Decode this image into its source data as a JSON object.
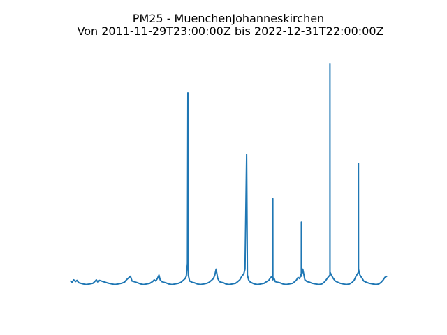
{
  "chart_data": {
    "type": "line",
    "title": "PM25 - MuenchenJohanneskirchen",
    "subtitle": "Von 2011-11-29T23:00:00Z bis 2022-12-31T22:00:00Z",
    "xlabel": "",
    "ylabel": "",
    "x_start": "2011-11-29T23:00:00Z",
    "x_end": "2022-12-31T22:00:00Z",
    "axes_visible": false,
    "grid": false,
    "line_color": "#1f77b4",
    "series": [
      {
        "x": [
          "2011-11-29",
          "2011-12-20",
          "2012-01-10",
          "2012-02-01",
          "2012-02-20",
          "2012-03-15",
          "2012-04-10",
          "2012-05-10",
          "2012-06-20",
          "2012-08-01",
          "2012-09-10",
          "2012-10-05",
          "2012-10-25",
          "2012-11-15",
          "2012-12-05",
          "2012-12-28",
          "2013-01-20",
          "2013-02-15",
          "2013-03-10",
          "2013-04-05",
          "2013-05-10",
          "2013-06-20",
          "2013-08-01",
          "2013-09-10",
          "2013-10-20",
          "2013-11-15",
          "2013-12-10",
          "2014-01-05",
          "2014-01-25",
          "2014-02-20",
          "2014-03-15",
          "2014-04-05",
          "2014-05-15",
          "2014-06-20",
          "2014-08-01",
          "2014-09-10",
          "2014-10-15",
          "2014-11-05",
          "2014-11-25",
          "2014-12-15",
          "2015-01-05",
          "2015-01-20",
          "2015-02-10",
          "2015-03-05",
          "2015-04-01",
          "2015-05-10",
          "2015-06-20",
          "2015-08-01",
          "2015-09-10",
          "2015-10-15",
          "2015-11-10",
          "2015-12-05",
          "2015-12-20",
          "2016-01-05",
          "2016-01-10",
          "2016-01-15",
          "2016-02-01",
          "2016-03-01",
          "2016-04-01",
          "2016-05-10",
          "2016-06-20",
          "2016-08-01",
          "2016-09-10",
          "2016-10-10",
          "2016-11-05",
          "2016-12-01",
          "2016-12-20",
          "2017-01-05",
          "2017-01-25",
          "2017-02-15",
          "2017-03-10",
          "2017-04-10",
          "2017-05-10",
          "2017-06-20",
          "2017-08-01",
          "2017-09-10",
          "2017-10-10",
          "2017-11-05",
          "2017-12-01",
          "2017-12-25",
          "2018-01-10",
          "2018-01-31",
          "2018-02-10",
          "2018-02-25",
          "2018-03-10",
          "2018-04-05",
          "2018-05-10",
          "2018-06-20",
          "2018-08-01",
          "2018-09-10",
          "2018-10-15",
          "2018-11-10",
          "2018-12-05",
          "2019-01-01",
          "2019-01-01T12:00:00Z",
          "2019-01-02",
          "2019-01-15",
          "2019-02-01",
          "2019-03-01",
          "2019-04-01",
          "2019-05-10",
          "2019-06-20",
          "2019-08-01",
          "2019-09-10",
          "2019-10-10",
          "2019-11-01",
          "2019-11-20",
          "2019-12-10",
          "2019-12-25",
          "2020-01-01",
          "2020-01-01T12:00:00Z",
          "2020-01-02",
          "2020-01-20",
          "2020-02-15",
          "2020-03-15",
          "2020-04-15",
          "2020-05-20",
          "2020-07-01",
          "2020-08-15",
          "2020-09-20",
          "2020-10-20",
          "2020-11-10",
          "2020-12-01",
          "2020-12-20",
          "2021-01-01",
          "2021-01-01T12:00:00Z",
          "2021-01-02",
          "2021-01-20",
          "2021-02-10",
          "2021-03-10",
          "2021-04-10",
          "2021-05-15",
          "2021-06-20",
          "2021-08-01",
          "2021-09-10",
          "2021-10-15",
          "2021-11-10",
          "2021-12-01",
          "2021-12-20",
          "2022-01-01",
          "2022-01-01T12:00:00Z",
          "2022-01-02",
          "2022-01-20",
          "2022-02-15",
          "2022-03-10",
          "2022-04-10",
          "2022-05-20",
          "2022-07-01",
          "2022-08-15",
          "2022-09-20",
          "2022-10-20",
          "2022-11-15",
          "2022-12-05",
          "2022-12-31"
        ],
        "y": [
          10,
          8,
          12,
          9,
          11,
          7,
          6,
          5,
          4,
          5,
          6,
          9,
          12,
          8,
          11,
          10,
          9,
          8,
          7,
          6,
          5,
          4,
          5,
          6,
          8,
          12,
          15,
          18,
          10,
          9,
          8,
          7,
          5,
          4,
          5,
          6,
          9,
          12,
          10,
          14,
          20,
          12,
          9,
          8,
          7,
          5,
          4,
          5,
          6,
          8,
          11,
          14,
          18,
          40,
          330,
          20,
          10,
          8,
          7,
          5,
          4,
          5,
          6,
          8,
          11,
          14,
          20,
          30,
          15,
          9,
          8,
          7,
          5,
          4,
          5,
          6,
          9,
          12,
          18,
          22,
          30,
          225,
          20,
          12,
          9,
          7,
          5,
          4,
          5,
          6,
          9,
          11,
          16,
          18,
          150,
          12,
          15,
          9,
          8,
          7,
          5,
          4,
          5,
          6,
          9,
          12,
          16,
          14,
          20,
          22,
          110,
          18,
          30,
          12,
          9,
          8,
          6,
          5,
          4,
          5,
          8,
          11,
          15,
          18,
          20,
          380,
          25,
          20,
          15,
          10,
          8,
          6,
          5,
          4,
          5,
          8,
          12,
          18,
          22,
          25,
          210,
          30,
          20,
          15,
          10,
          8,
          6,
          5,
          4,
          5,
          8,
          12,
          16,
          18
        ]
      }
    ]
  }
}
